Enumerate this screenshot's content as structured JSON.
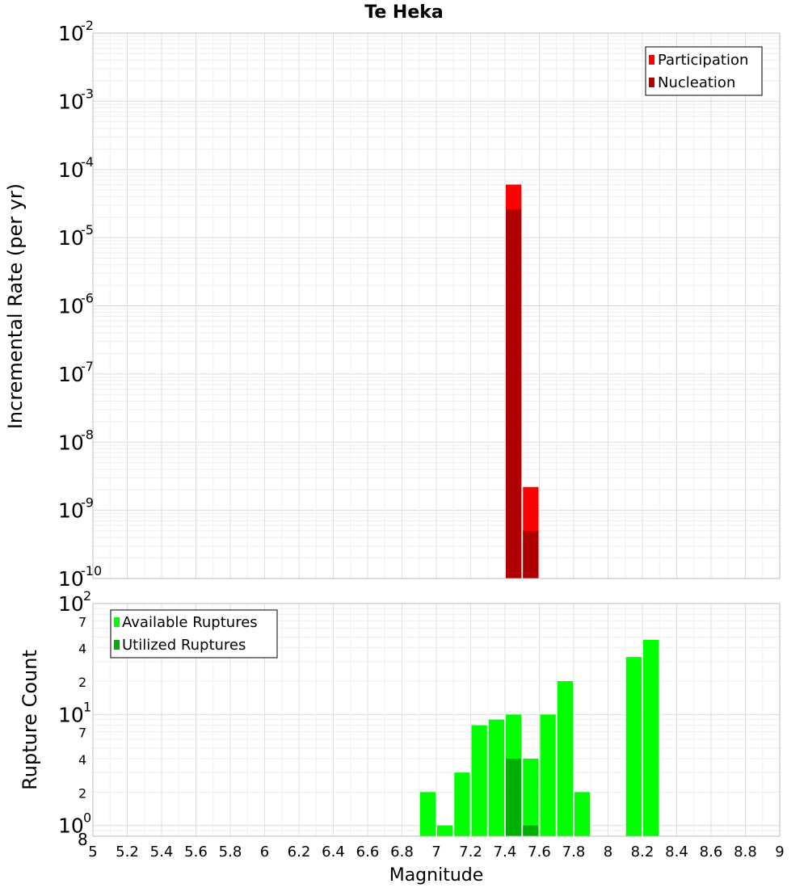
{
  "chart_data": [
    {
      "type": "bar",
      "title": "Te Heka",
      "xlabel": "",
      "ylabel": "Incremental Rate (per yr)",
      "yscale": "log",
      "ylim": [
        1e-10,
        0.01
      ],
      "xlim": [
        5,
        9
      ],
      "bar_width": 0.1,
      "grid": true,
      "legend_position": "top-right",
      "y_tick_labels": [
        {
          "base": "10",
          "exp": "-10",
          "value": 1e-10
        },
        {
          "base": "10",
          "exp": "-9",
          "value": 1e-09
        },
        {
          "base": "10",
          "exp": "-8",
          "value": 1e-08
        },
        {
          "base": "10",
          "exp": "-7",
          "value": 1e-07
        },
        {
          "base": "10",
          "exp": "-6",
          "value": 1e-06
        },
        {
          "base": "10",
          "exp": "-5",
          "value": 1e-05
        },
        {
          "base": "10",
          "exp": "-4",
          "value": 0.0001
        },
        {
          "base": "10",
          "exp": "-3",
          "value": 0.001
        },
        {
          "base": "10",
          "exp": "-2",
          "value": 0.01
        }
      ],
      "series": [
        {
          "name": "Participation",
          "color": "#ff0000",
          "points": [
            {
              "x": 7.45,
              "y": 6e-05
            },
            {
              "x": 7.55,
              "y": 2.2e-09
            }
          ]
        },
        {
          "name": "Nucleation",
          "color": "#b00000",
          "points": [
            {
              "x": 7.45,
              "y": 2.6e-05
            },
            {
              "x": 7.55,
              "y": 5e-10
            }
          ]
        }
      ]
    },
    {
      "type": "bar",
      "title": "",
      "xlabel": "Magnitude",
      "ylabel": "Rupture Count",
      "yscale": "log",
      "ylim": [
        0.8,
        100
      ],
      "xlim": [
        5,
        9
      ],
      "bar_width": 0.1,
      "grid": true,
      "legend_position": "top-left",
      "x_tick_labels": [
        "5",
        "5.2",
        "5.4",
        "5.6",
        "5.8",
        "6",
        "6.2",
        "6.4",
        "6.6",
        "6.8",
        "7",
        "7.2",
        "7.4",
        "7.6",
        "7.8",
        "8",
        "8.2",
        "8.4",
        "8.6",
        "8.8",
        "9"
      ],
      "y_major_tick_labels": [
        {
          "base": "10",
          "exp": "0",
          "value": 1
        },
        {
          "base": "10",
          "exp": "1",
          "value": 10
        },
        {
          "base": "10",
          "exp": "2",
          "value": 100
        }
      ],
      "y_minor_tick_labels": [
        {
          "label": "8",
          "value": 0.8
        },
        {
          "label": "2",
          "value": 2
        },
        {
          "label": "4",
          "value": 4
        },
        {
          "label": "7",
          "value": 7
        },
        {
          "label": "2",
          "value": 20
        },
        {
          "label": "4",
          "value": 40
        },
        {
          "label": "7",
          "value": 70
        }
      ],
      "series": [
        {
          "name": "Available Ruptures",
          "color": "#00ff00",
          "points": [
            {
              "x": 6.95,
              "y": 2
            },
            {
              "x": 7.05,
              "y": 1
            },
            {
              "x": 7.15,
              "y": 3
            },
            {
              "x": 7.25,
              "y": 8
            },
            {
              "x": 7.35,
              "y": 9
            },
            {
              "x": 7.45,
              "y": 10
            },
            {
              "x": 7.55,
              "y": 4
            },
            {
              "x": 7.65,
              "y": 10
            },
            {
              "x": 7.75,
              "y": 20
            },
            {
              "x": 7.85,
              "y": 2
            },
            {
              "x": 8.15,
              "y": 33
            },
            {
              "x": 8.25,
              "y": 47
            }
          ]
        },
        {
          "name": "Utilized Ruptures",
          "color": "#00b000",
          "points": [
            {
              "x": 7.45,
              "y": 4
            },
            {
              "x": 7.55,
              "y": 1
            }
          ]
        }
      ]
    }
  ]
}
